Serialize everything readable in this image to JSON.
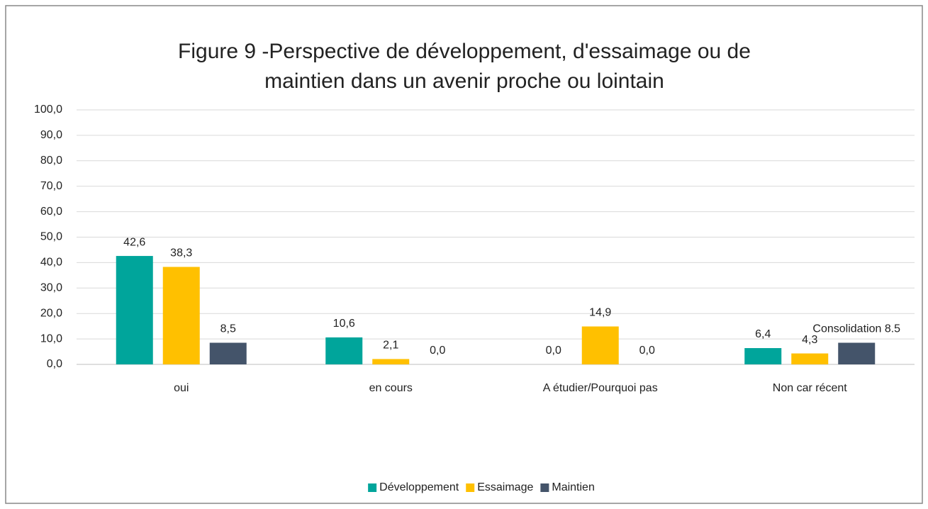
{
  "chart_data": {
    "type": "bar",
    "title": "Figure 9 -Perspective de développement, d'essaimage ou de maintien dans un avenir proche ou lointain",
    "categories": [
      "oui",
      "en cours",
      "A étudier/Pourquoi pas",
      "Non car récent"
    ],
    "series": [
      {
        "name": "Développement",
        "color": "#00a59b",
        "values": [
          42.6,
          10.6,
          0.0,
          6.4
        ],
        "value_labels": [
          "42,6",
          "10,6",
          "0,0",
          "6,4"
        ]
      },
      {
        "name": "Essaimage",
        "color": "#ffc000",
        "values": [
          38.3,
          2.1,
          14.9,
          4.3
        ],
        "value_labels": [
          "38,3",
          "2,1",
          "14,9",
          "4,3"
        ]
      },
      {
        "name": "Maintien",
        "color": "#44546a",
        "values": [
          8.5,
          0.0,
          0.0,
          8.5
        ],
        "value_labels": [
          "8,5",
          "0,0",
          "0,0",
          "Consolidation 8.5"
        ]
      }
    ],
    "ylim": [
      0,
      100
    ],
    "yticks": [
      {
        "value": 0,
        "label": "0,0"
      },
      {
        "value": 10,
        "label": "10,0"
      },
      {
        "value": 20,
        "label": "20,0"
      },
      {
        "value": 30,
        "label": "30,0"
      },
      {
        "value": 40,
        "label": "40,0"
      },
      {
        "value": 50,
        "label": "50,0"
      },
      {
        "value": 60,
        "label": "60,0"
      },
      {
        "value": 70,
        "label": "70,0"
      },
      {
        "value": 80,
        "label": "80,0"
      },
      {
        "value": 90,
        "label": "90,0"
      },
      {
        "value": 100,
        "label": "100,0"
      }
    ],
    "grid": true,
    "legend": "bottom"
  }
}
